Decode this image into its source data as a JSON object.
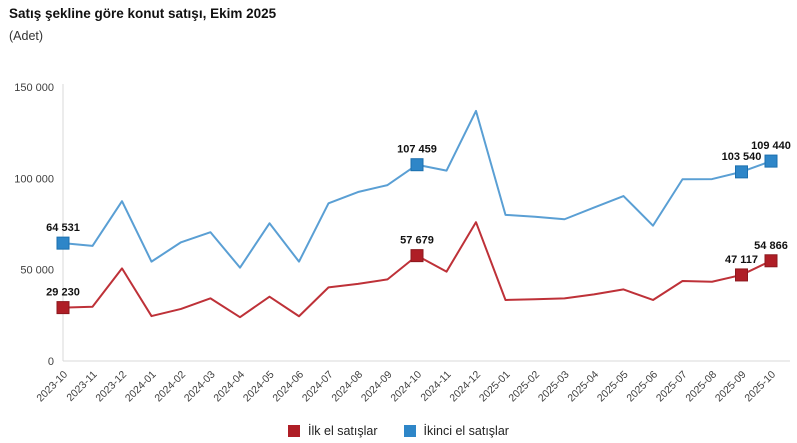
{
  "header": {
    "title": "Satış şekline göre konut satışı, Ekim 2025",
    "subtitle": "(Adet)"
  },
  "legend": {
    "items": [
      {
        "label": "İlk el satışlar",
        "color": "#AF1E26"
      },
      {
        "label": "İkinci el satışlar",
        "color": "#2E86C8"
      }
    ]
  },
  "chart_data": {
    "type": "line",
    "title": "Satış şekline göre konut satışı, Ekim 2025",
    "subtitle": "(Adet)",
    "xlabel": "",
    "ylabel": "Adet",
    "grid": false,
    "legend_position": "bottom",
    "categories": [
      "2023-10",
      "2023-11",
      "2023-12",
      "2024-01",
      "2024-02",
      "2024-03",
      "2024-04",
      "2024-05",
      "2024-06",
      "2024-07",
      "2024-08",
      "2024-09",
      "2024-10",
      "2024-11",
      "2024-12",
      "2025-01",
      "2025-02",
      "2025-03",
      "2025-04",
      "2025-05",
      "2025-06",
      "2025-07",
      "2025-08",
      "2025-09",
      "2025-10"
    ],
    "series": [
      {
        "name": "İlk el satışlar",
        "line_color": "#BE3138",
        "marker_color": "#AF1E26",
        "marker_border": "#8C181E",
        "values": [
          29230,
          29700,
          50700,
          24600,
          28500,
          34300,
          24000,
          35200,
          24500,
          40300,
          42200,
          44700,
          57679,
          48900,
          76000,
          33400,
          33800,
          34300,
          36500,
          39200,
          33400,
          43800,
          43400,
          47117,
          54866
        ]
      },
      {
        "name": "İkinci el satışlar",
        "line_color": "#5A9FD4",
        "marker_color": "#2E86C8",
        "marker_border": "#1B6FAE",
        "values": [
          64531,
          63000,
          87500,
          54400,
          65000,
          70500,
          51100,
          75400,
          54400,
          86300,
          92500,
          96300,
          107459,
          104200,
          136900,
          80000,
          79000,
          77600,
          84000,
          90300,
          74100,
          99500,
          99600,
          103540,
          109440
        ]
      }
    ],
    "labeled_indices": [
      0,
      12,
      23,
      24
    ],
    "labeled_values": {
      "ilk_el": [
        "29 230",
        "57 679",
        "47 117",
        "54 866"
      ],
      "ikinci_el": [
        "64 531",
        "107 459",
        "103 540",
        "109 440"
      ]
    },
    "y_axis": {
      "min": 0,
      "max": 150000,
      "tick_step": 50000,
      "tick_labels": [
        "0",
        "50 000",
        "100 000",
        "150 000"
      ]
    },
    "number_format": "space-thousands"
  }
}
